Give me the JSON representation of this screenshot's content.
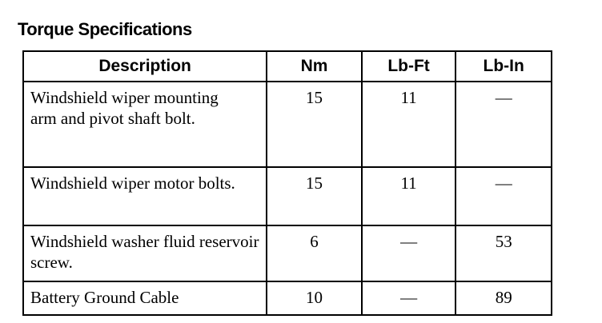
{
  "title": "Torque Specifications",
  "headers": [
    "Description",
    "Nm",
    "Lb-Ft",
    "Lb-In"
  ],
  "rows": [
    [
      "Windshield wiper mounting arm and pivot shaft bolt.",
      "15",
      "11",
      "—"
    ],
    [
      "Windshield wiper motor bolts.",
      "15",
      "11",
      "—"
    ],
    [
      "Windshield washer fluid reservoir screw.",
      "6",
      "—",
      "53"
    ],
    [
      "Battery Ground Cable",
      "10",
      "—",
      "89"
    ]
  ]
}
